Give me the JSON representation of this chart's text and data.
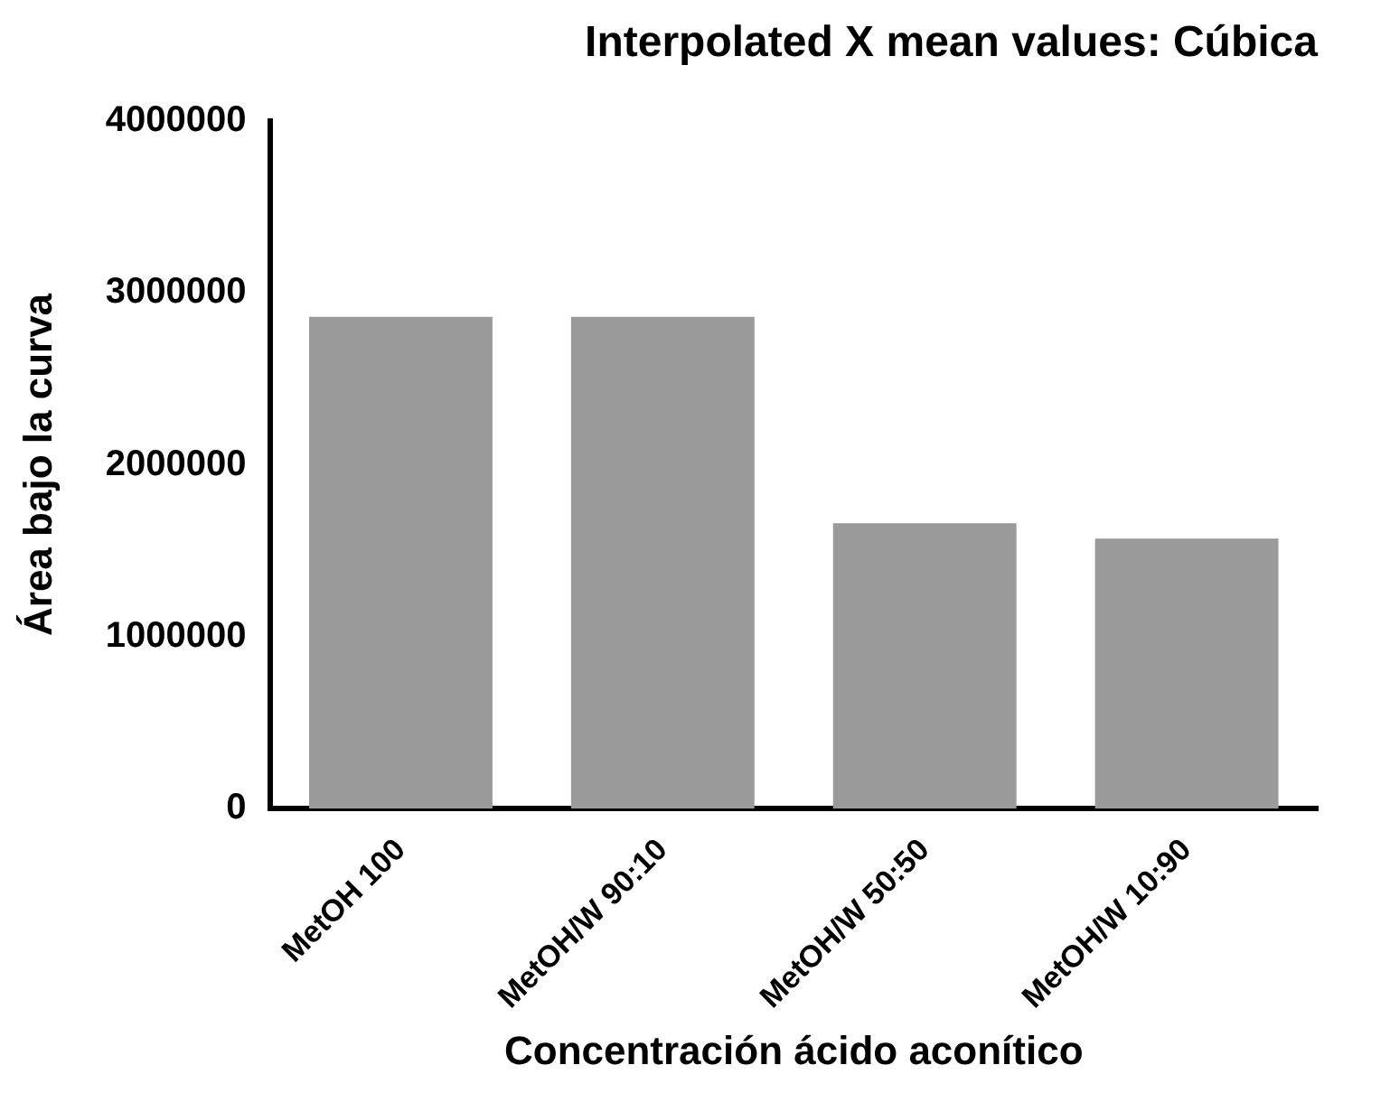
{
  "chart_data": {
    "type": "bar",
    "title": "Interpolated X mean values: Cúbica",
    "xlabel": "Concentración ácido aconítico",
    "ylabel": "Área bajo la curva",
    "categories": [
      "MetOH 100",
      "MetOH/W 90:10",
      "MetOH/W 50:50",
      "MetOH/W 10:90"
    ],
    "values": [
      2860000,
      2860000,
      1660000,
      1570000
    ],
    "color": "#9a9a9a",
    "ylim": [
      0,
      4000000
    ],
    "yticks": [
      0,
      1000000,
      2000000,
      3000000,
      4000000
    ],
    "grid": false,
    "legend": false
  }
}
